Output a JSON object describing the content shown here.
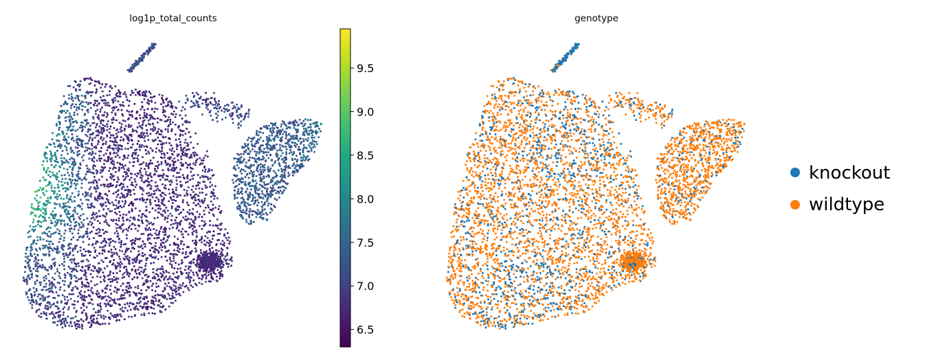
{
  "chart_data": [
    {
      "type": "scatter",
      "title": "log1p_total_counts",
      "xlabel": "",
      "ylabel": "",
      "colormap": "viridis",
      "colorbar": {
        "range": [
          6.3,
          9.95
        ],
        "ticks": [
          6.5,
          7.0,
          7.5,
          8.0,
          8.5,
          9.0,
          9.5
        ],
        "tick_labels": [
          "6.5",
          "7.0",
          "7.5",
          "8.0",
          "8.5",
          "9.0",
          "9.5"
        ]
      },
      "axes_visible": false,
      "grid": false,
      "value_pattern": "Most cells 6.3–7.2 (dark purple); a band along the left edge of the embedding reaches 8.0–9.8 (teal to yellow-green); the upper-right lobe is around 7.0–7.5."
    },
    {
      "type": "scatter",
      "title": "genotype",
      "xlabel": "",
      "ylabel": "",
      "axes_visible": false,
      "grid": false,
      "legend_position": "right",
      "series": [
        {
          "name": "knockout",
          "color": "#1f77b4"
        },
        {
          "name": "wildtype",
          "color": "#ff7f0e"
        }
      ]
    }
  ]
}
